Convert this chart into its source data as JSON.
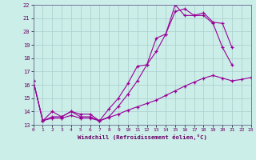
{
  "xlabel": "Windchill (Refroidissement éolien,°C)",
  "background_color": "#cceee8",
  "grid_color": "#aacccc",
  "line_color": "#990099",
  "xlim": [
    0,
    23
  ],
  "ylim": [
    13,
    22
  ],
  "xticks": [
    0,
    1,
    2,
    3,
    4,
    5,
    6,
    7,
    8,
    9,
    10,
    11,
    12,
    13,
    14,
    15,
    16,
    17,
    18,
    19,
    20,
    21,
    22,
    23
  ],
  "yticks": [
    13,
    14,
    15,
    16,
    17,
    18,
    19,
    20,
    21,
    22
  ],
  "series1_x": [
    0,
    1,
    2,
    3,
    4,
    5,
    6,
    7,
    8,
    9,
    10,
    11,
    12,
    13,
    14,
    15,
    16,
    17,
    18,
    19,
    20,
    21
  ],
  "series1_y": [
    16.3,
    13.3,
    14.0,
    13.6,
    14.0,
    13.8,
    13.8,
    13.3,
    14.2,
    15.0,
    16.1,
    17.4,
    17.5,
    19.5,
    19.8,
    21.5,
    21.7,
    21.2,
    21.2,
    20.6,
    18.8,
    17.5
  ],
  "series2_x": [
    0,
    1,
    2,
    3,
    4,
    5,
    6,
    7,
    8,
    9,
    10,
    11,
    12,
    13,
    14,
    15,
    16,
    17,
    18,
    19,
    20,
    21,
    22,
    23
  ],
  "series2_y": [
    16.3,
    13.3,
    13.5,
    13.5,
    13.7,
    13.5,
    13.5,
    13.3,
    13.55,
    13.8,
    14.1,
    14.35,
    14.6,
    14.85,
    15.2,
    15.55,
    15.9,
    16.2,
    16.5,
    16.7,
    16.5,
    16.3,
    16.4,
    16.55
  ],
  "series3_x": [
    0,
    1,
    2,
    3,
    4,
    5,
    6,
    7,
    8,
    9,
    10,
    11,
    12,
    13,
    14,
    15,
    16,
    17,
    18,
    19,
    20,
    21
  ],
  "series3_y": [
    16.3,
    13.3,
    13.6,
    13.6,
    14.0,
    13.6,
    13.6,
    13.3,
    13.6,
    14.4,
    15.3,
    16.3,
    17.5,
    18.5,
    19.8,
    22.0,
    21.2,
    21.2,
    21.4,
    20.7,
    20.6,
    18.8
  ]
}
